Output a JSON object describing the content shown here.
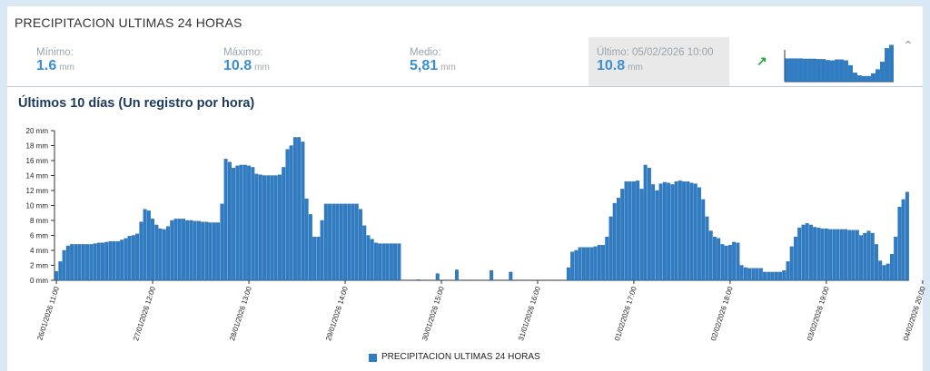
{
  "header": {
    "title": "PRECIPITACION ULTIMAS 24 HORAS"
  },
  "stats": {
    "min": {
      "label": "Mínimo:",
      "value": "1.6",
      "unit": "mm"
    },
    "max": {
      "label": "Máximo:",
      "value": "10.8",
      "unit": "mm"
    },
    "avg": {
      "label": "Medio:",
      "value": "5,81",
      "unit": "mm"
    },
    "last": {
      "label": "Último: 05/02/2026 10:00",
      "value": "10.8",
      "unit": "mm"
    }
  },
  "icons": {
    "trend": "trend-up-arrow-icon",
    "collapse": "chevron-up-icon"
  },
  "colors": {
    "bar": "#2e7cc4",
    "bar_edge": "#1f5f9e",
    "trend": "#2aa83a",
    "value": "#3b8fd0",
    "subtitle": "#1b3a5e"
  },
  "chart_data": [
    {
      "type": "bar",
      "title": "Últimos 10 días (Un registro por hora)",
      "y_unit": "mm",
      "ylim": [
        0,
        20
      ],
      "y_ticks": [
        "0 mm",
        "2 mm",
        "4 mm",
        "6 mm",
        "8 mm",
        "10 mm",
        "12 mm",
        "14 mm",
        "16 mm",
        "18 mm",
        "20 mm"
      ],
      "x_tick_labels": [
        "26/01/2026 11:00",
        "27/01/2026 12:00",
        "28/01/2026 13:00",
        "29/01/2026 14:00",
        "30/01/2026 15:00",
        "31/01/2026 16:00",
        "01/02/2026 17:00",
        "02/02/2026 18:00",
        "03/02/2026 19:00",
        "04/02/2026 20:00"
      ],
      "x_tick_index": [
        0,
        25,
        50,
        75,
        100,
        125,
        150,
        175,
        200,
        225
      ],
      "legend": [
        "PRECIPITACION ULTIMAS 24 HORAS"
      ],
      "grid": false,
      "series": [
        {
          "name": "PRECIPITACION ULTIMAS 24 HORAS",
          "values": [
            1.2,
            2.5,
            4.0,
            4.6,
            4.8,
            4.8,
            4.8,
            4.8,
            4.8,
            4.8,
            4.9,
            5.0,
            5.0,
            5.1,
            5.2,
            5.2,
            5.2,
            5.4,
            5.6,
            5.9,
            6.0,
            6.2,
            7.8,
            9.5,
            9.3,
            8.2,
            7.4,
            6.9,
            6.8,
            7.2,
            8.0,
            8.2,
            8.2,
            8.2,
            8.0,
            8.0,
            7.9,
            7.9,
            7.8,
            7.8,
            7.7,
            7.7,
            7.7,
            10.2,
            16.2,
            15.8,
            15.0,
            15.3,
            15.4,
            15.4,
            15.3,
            15.1,
            14.2,
            14.1,
            14.0,
            14.0,
            14.0,
            14.0,
            14.1,
            15.1,
            17.5,
            18.0,
            19.1,
            19.1,
            18.5,
            10.9,
            8.8,
            5.8,
            5.8,
            8.0,
            10.2,
            10.2,
            10.2,
            10.2,
            10.2,
            10.2,
            10.2,
            10.2,
            10.2,
            9.5,
            7.3,
            6.0,
            5.5,
            5.0,
            4.9,
            4.9,
            4.9,
            4.9,
            4.9,
            4.9,
            null,
            null,
            null,
            null,
            0.1,
            null,
            null,
            null,
            null,
            0.9,
            null,
            null,
            null,
            null,
            1.4,
            null,
            null,
            null,
            null,
            null,
            null,
            null,
            null,
            1.3,
            null,
            null,
            null,
            null,
            1.1,
            null,
            null,
            null,
            null,
            null,
            null,
            null,
            null,
            null,
            null,
            null,
            null,
            null,
            null,
            1.7,
            3.8,
            4.0,
            4.4,
            4.4,
            4.4,
            4.4,
            4.5,
            4.7,
            4.7,
            5.8,
            8.5,
            10.3,
            11.0,
            12.2,
            13.2,
            13.2,
            13.2,
            13.3,
            12.2,
            15.4,
            15.0,
            12.8,
            12.0,
            12.9,
            13.1,
            13.0,
            12.8,
            13.2,
            13.3,
            13.2,
            13.2,
            13.0,
            12.9,
            12.4,
            10.8,
            8.5,
            6.6,
            5.8,
            5.6,
            4.8,
            4.6,
            4.7,
            5.1,
            5.0,
            2.0,
            1.7,
            1.6,
            1.6,
            1.6,
            1.6,
            1.1,
            1.1,
            1.1,
            1.1,
            1.1,
            1.3,
            2.5,
            4.5,
            5.8,
            7.0,
            7.4,
            7.6,
            7.4,
            7.1,
            7.0,
            6.9,
            6.9,
            6.8,
            6.8,
            6.8,
            6.8,
            6.8,
            6.7,
            6.7,
            6.7,
            6.0,
            6.3,
            6.6,
            6.3,
            4.8,
            2.6,
            2.0,
            2.2,
            3.5,
            5.8,
            9.8,
            10.8,
            11.8
          ]
        }
      ]
    },
    {
      "type": "bar",
      "title": "",
      "series": [
        {
          "name": "",
          "values": [
            6.8,
            6.8,
            6.8,
            6.8,
            6.7,
            6.7,
            6.7,
            6.6,
            6.6,
            6.3,
            6.2,
            6.5,
            6.5,
            6.2,
            4.8,
            2.6,
            1.8,
            1.6,
            1.6,
            2.4,
            3.6,
            5.8,
            9.8,
            10.8
          ]
        }
      ]
    }
  ]
}
